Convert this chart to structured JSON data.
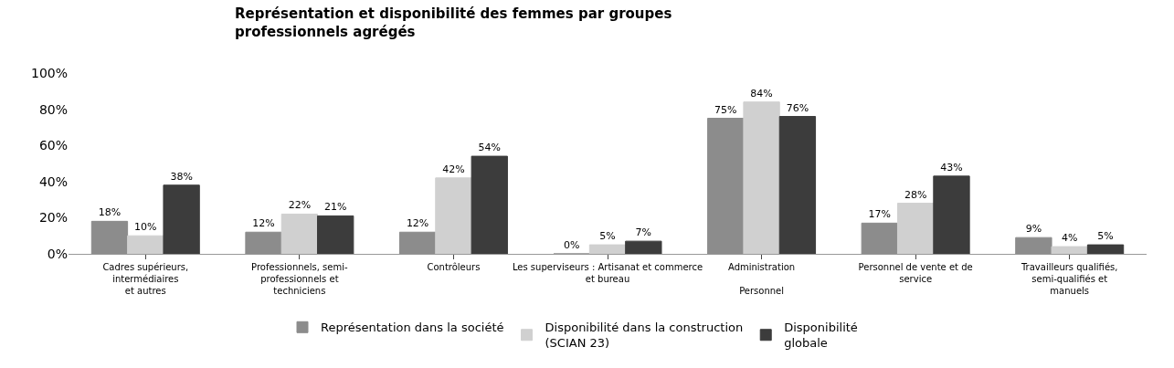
{
  "chart_data": {
    "type": "bar",
    "title": "Représentation et disponibilité des femmes par groupes\nprofessionnels agrégés",
    "categories": [
      "Cadres supérieurs,\nintermédiaires\net autres",
      "Professionnels, semi-\nprofessionnels et\ntechniciens",
      "Contrôleurs",
      "Les superviseurs : Artisanat et commerce\net bureau",
      "Administration\n\nPersonnel",
      "Personnel de vente et de\nservice",
      "Travailleurs qualifiés,\nsemi-qualifiés et\nmanuels"
    ],
    "series": [
      {
        "name": "Représentation dans la société",
        "color": "#8c8c8c",
        "values": [
          18,
          12,
          12,
          0,
          75,
          17,
          9
        ],
        "value_labels": [
          "18%",
          "12%",
          "12%",
          "0%",
          "75%",
          "17%",
          "9%"
        ]
      },
      {
        "name": "Disponibilité dans la construction\n(SCIAN 23)",
        "color": "#d0d0d0",
        "values": [
          10,
          22,
          42,
          5,
          84,
          28,
          4
        ],
        "value_labels": [
          "10%",
          "22%",
          "42%",
          "5%",
          "84%",
          "28%",
          "4%"
        ]
      },
      {
        "name": "Disponibilité\nglobale",
        "color": "#3c3c3c",
        "values": [
          38,
          21,
          54,
          7,
          76,
          43,
          5
        ],
        "value_labels": [
          "38%",
          "21%",
          "54%",
          "7%",
          "76%",
          "43%",
          "5%"
        ]
      }
    ],
    "ylim": [
      0,
      100
    ],
    "yticks": [
      {
        "value": 0,
        "label": "0%"
      },
      {
        "value": 20,
        "label": "20%"
      },
      {
        "value": 40,
        "label": "40%"
      },
      {
        "value": 60,
        "label": "60%"
      },
      {
        "value": 80,
        "label": "80%"
      },
      {
        "value": 100,
        "label": "100%"
      }
    ],
    "legend": "bottom"
  }
}
